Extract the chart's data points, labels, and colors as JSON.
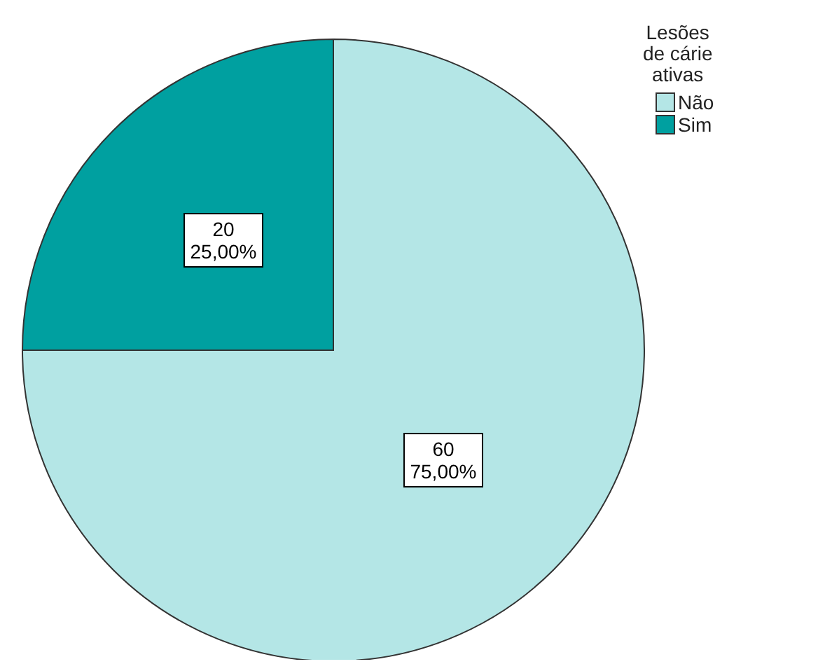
{
  "chart_data": {
    "type": "pie",
    "legend_title": "Lesões\nde cárie\nativas",
    "categories": [
      "Não",
      "Sim"
    ],
    "values": [
      60,
      20
    ],
    "colors": [
      "#b4e6e6",
      "#00a0a0"
    ],
    "value_labels": [
      "60\n75,00%",
      "20\n25,00%"
    ],
    "legend": "top right"
  }
}
